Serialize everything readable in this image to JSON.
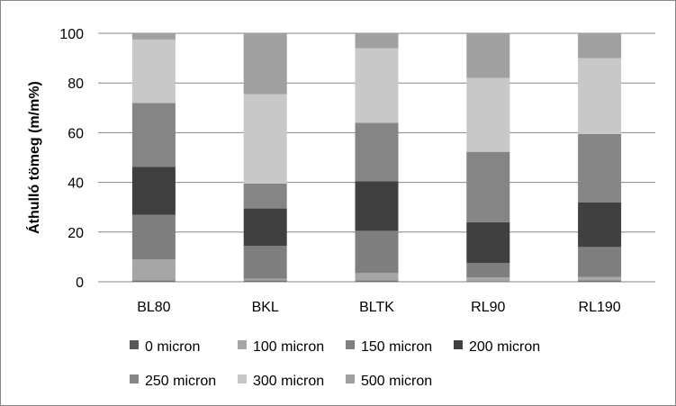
{
  "chart_data": {
    "type": "bar",
    "stacked": true,
    "title": "",
    "xlabel": "",
    "ylabel": "Áthulló tömeg (m/m%)",
    "ylim": [
      0,
      100
    ],
    "yticks": [
      0,
      20,
      40,
      60,
      80,
      100
    ],
    "grid": true,
    "legend_position": "bottom",
    "categories": [
      "BL80",
      "BKL",
      "BLTK",
      "RL90",
      "RL190"
    ],
    "series": [
      {
        "name": "0 micron",
        "color": "#595959",
        "values": [
          0.5,
          0.5,
          0.5,
          0.3,
          0.5
        ]
      },
      {
        "name": "100 micron",
        "color": "#A6A6A6",
        "values": [
          8.5,
          0.7,
          3.0,
          1.5,
          1.5
        ]
      },
      {
        "name": "150 micron",
        "color": "#7F7F7F",
        "values": [
          18.0,
          13.3,
          17.0,
          5.7,
          12.0
        ]
      },
      {
        "name": "200 micron",
        "color": "#404040",
        "values": [
          19.3,
          15.0,
          20.0,
          16.5,
          18.0
        ]
      },
      {
        "name": "250 micron",
        "color": "#858585",
        "values": [
          25.7,
          10.0,
          23.5,
          28.3,
          27.5
        ]
      },
      {
        "name": "300 micron",
        "color": "#C8C8C8",
        "values": [
          25.5,
          36.0,
          30.0,
          29.7,
          30.5
        ]
      },
      {
        "name": "500 micron",
        "color": "#A0A0A0",
        "values": [
          2.5,
          24.5,
          6.0,
          18.0,
          10.0
        ]
      }
    ]
  }
}
